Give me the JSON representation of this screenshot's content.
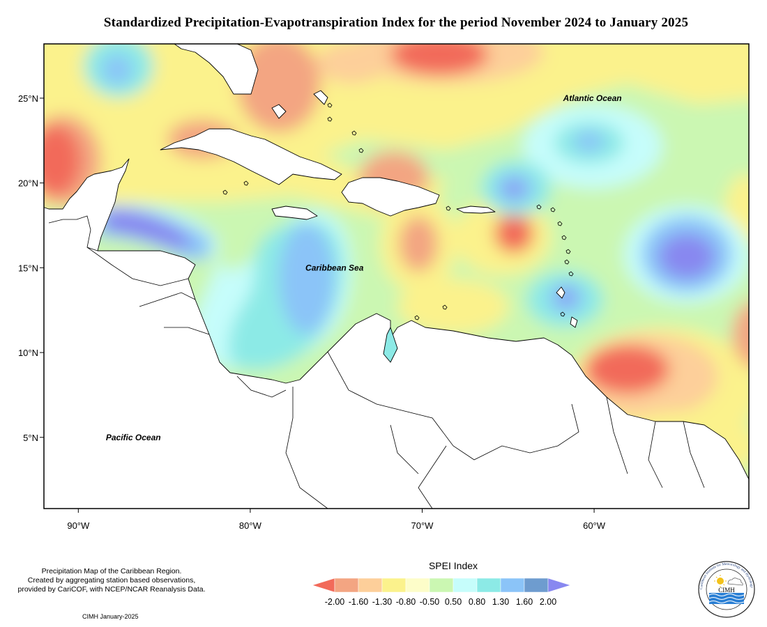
{
  "title": "Standardized Precipitation-Evapotranspiration Index for the period November 2024 to January 2025",
  "map": {
    "lon_range": [
      -92,
      -51
    ],
    "lat_range": [
      0.8,
      28.2
    ],
    "x_ticks": [
      {
        "value": -90,
        "label": "90°W"
      },
      {
        "value": -80,
        "label": "80°W"
      },
      {
        "value": -70,
        "label": "70°W"
      },
      {
        "value": -60,
        "label": "60°W"
      }
    ],
    "y_ticks": [
      {
        "value": 25,
        "label": "25°N"
      },
      {
        "value": 20,
        "label": "20°N"
      },
      {
        "value": 15,
        "label": "15°N"
      },
      {
        "value": 10,
        "label": "10°N"
      },
      {
        "value": 5,
        "label": "5°N"
      }
    ],
    "labels": [
      {
        "text": "Atlantic Ocean",
        "lon": -60.1,
        "lat": 25.0
      },
      {
        "text": "Caribbean Sea",
        "lon": -75.1,
        "lat": 15.0
      },
      {
        "text": "Pacific Ocean",
        "lon": -86.8,
        "lat": 5.0
      }
    ]
  },
  "legend": {
    "title": "SPEI Index",
    "tick_labels": [
      "-2.00",
      "-1.60",
      "-1.30",
      "-0.80",
      "-0.50",
      "0.50",
      "0.80",
      "1.30",
      "1.60",
      "2.00"
    ],
    "colors": [
      "#f26a5a",
      "#f3a582",
      "#fdcf9a",
      "#fbf28c",
      "#fdfdc9",
      "#cbf7b2",
      "#c6fdfb",
      "#8ceae6",
      "#8bc4f8",
      "#6e9ccf",
      "#8888f0"
    ]
  },
  "credit": {
    "lines": [
      "Precipitation Map of the Caribbean Region.",
      "Created by aggregating station based observations,",
      "provided by CariCOF, with NCEP/NCAR Reanalysis Data."
    ],
    "date": "CIMH January-2025"
  },
  "logo": {
    "text": "CIMH",
    "ring_text": "Caribbean Institute for Meteorology and Hydrology",
    "icon": "sun-cloud-waves-icon"
  }
}
